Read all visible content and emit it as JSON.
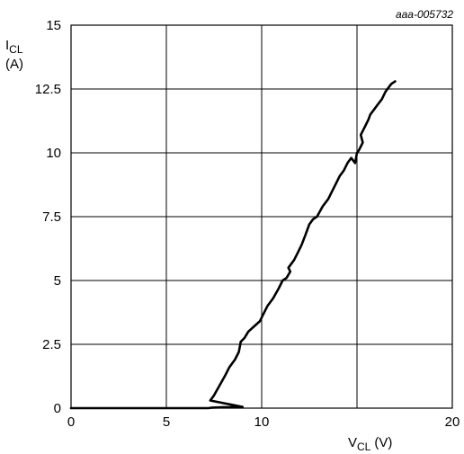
{
  "figure_ref": "aaa-005732",
  "chart_data": {
    "type": "line",
    "title": "",
    "xlabel": {
      "main": "V",
      "sub": "CL",
      "unit": "(V)"
    },
    "ylabel": {
      "main": "I",
      "sub": "CL",
      "unit": "(A)"
    },
    "xlim": [
      0,
      20
    ],
    "ylim": [
      0,
      15
    ],
    "xticks": [
      0,
      5,
      10,
      20
    ],
    "xtick_labels": [
      "0",
      "5",
      "10",
      "20"
    ],
    "yticks": [
      0,
      2.5,
      5,
      7.5,
      10,
      12.5,
      15
    ],
    "ytick_labels": [
      "0",
      "2.5",
      "5",
      "7.5",
      "10",
      "12.5",
      "15"
    ],
    "grid": true,
    "grid_x": [
      5,
      10,
      15
    ],
    "grid_y": [
      2.5,
      5,
      7.5,
      10,
      12.5
    ],
    "line_color": "#000000",
    "series": [
      {
        "x": [
          0,
          3,
          6,
          7.2,
          7.4,
          8,
          9,
          7.3,
          7.5,
          7.8,
          8.1,
          8.3,
          8.6,
          8.8,
          8.9,
          9.1,
          9.3,
          9.6,
          9.9,
          10.1,
          10.3,
          10.6,
          10.9,
          11.1,
          11.3,
          11.5,
          11.4,
          11.7,
          11.9,
          12.1,
          12.3,
          12.5,
          12.7,
          12.9,
          13.2,
          13.5,
          13.7,
          13.9,
          14.1,
          14.3,
          14.5,
          14.7,
          14.9,
          15.0,
          15.1,
          15.3,
          15.2,
          15.4,
          15.6,
          15.7,
          15.9,
          16.1,
          16.3,
          16.5,
          16.7,
          16.8,
          17.0
        ],
        "y": [
          0,
          0,
          0,
          0,
          0.02,
          0.04,
          0.05,
          0.3,
          0.5,
          0.9,
          1.3,
          1.6,
          1.9,
          2.2,
          2.6,
          2.75,
          3.0,
          3.2,
          3.4,
          3.7,
          4.0,
          4.3,
          4.7,
          5.0,
          5.1,
          5.35,
          5.5,
          5.8,
          6.1,
          6.4,
          6.8,
          7.2,
          7.4,
          7.5,
          7.9,
          8.2,
          8.5,
          8.8,
          9.1,
          9.3,
          9.6,
          9.8,
          9.6,
          10.0,
          10.1,
          10.4,
          10.7,
          11.0,
          11.3,
          11.5,
          11.7,
          11.9,
          12.1,
          12.4,
          12.6,
          12.7,
          12.8
        ]
      }
    ]
  }
}
